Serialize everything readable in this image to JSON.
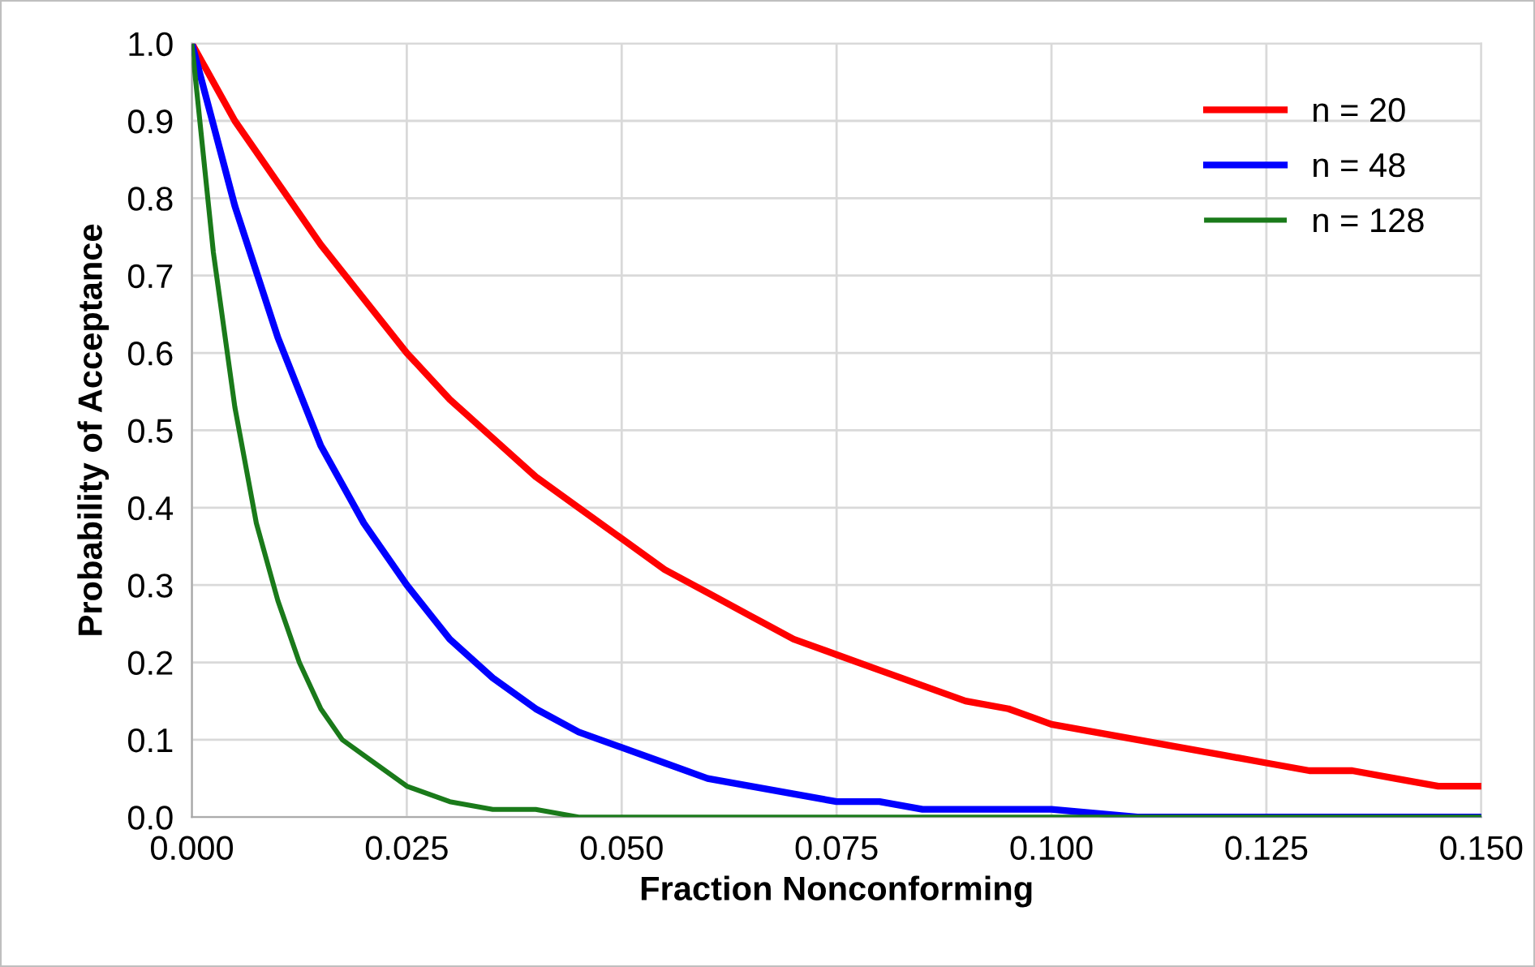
{
  "chart_data": {
    "type": "line",
    "xlabel": "Fraction Nonconforming",
    "ylabel": "Probability of Acceptance",
    "xlim": [
      0,
      0.15
    ],
    "xticks": [
      {
        "value": 0,
        "label": "0.000"
      },
      {
        "value": 0.025,
        "label": "0.025"
      },
      {
        "value": 0.05,
        "label": "0.050"
      },
      {
        "value": 0.075,
        "label": "0.075"
      },
      {
        "value": 0.1,
        "label": "0.100"
      },
      {
        "value": 0.125,
        "label": "0.125"
      },
      {
        "value": 0.15,
        "label": "0.150"
      }
    ],
    "ylim": [
      0,
      1
    ],
    "yticks": [
      {
        "value": 0,
        "label": "0.0"
      },
      0.1,
      0.2,
      0.3,
      0.4,
      0.5,
      0.6,
      0.7,
      0.8,
      0.9,
      {
        "value": 1,
        "label": "1.0"
      }
    ],
    "grid": true,
    "legend": "top right",
    "marker": "none",
    "line_style": "solid",
    "series": [
      {
        "name": "n = 20",
        "color": "#ff0000",
        "x": [
          0,
          0.005,
          0.01,
          0.015,
          0.02,
          0.025,
          0.03,
          0.035,
          0.04,
          0.045,
          0.05,
          0.055,
          0.06,
          0.065,
          0.07,
          0.075,
          0.08,
          0.085,
          0.09,
          0.095,
          0.1,
          0.105,
          0.11,
          0.115,
          0.12,
          0.125,
          0.13,
          0.135,
          0.14,
          0.145,
          0.15
        ],
        "values": [
          1.0,
          0.9,
          0.82,
          0.74,
          0.67,
          0.6,
          0.54,
          0.49,
          0.44,
          0.4,
          0.36,
          0.32,
          0.29,
          0.26,
          0.23,
          0.21,
          0.19,
          0.17,
          0.15,
          0.14,
          0.12,
          0.11,
          0.1,
          0.09,
          0.08,
          0.07,
          0.06,
          0.06,
          0.05,
          0.04,
          0.04
        ]
      },
      {
        "name": "n = 48",
        "color": "#0000ff",
        "x": [
          0,
          0.005,
          0.01,
          0.015,
          0.02,
          0.025,
          0.03,
          0.035,
          0.04,
          0.045,
          0.05,
          0.055,
          0.06,
          0.065,
          0.07,
          0.075,
          0.08,
          0.085,
          0.09,
          0.095,
          0.1,
          0.11,
          0.12,
          0.13,
          0.14,
          0.15
        ],
        "values": [
          1.0,
          0.79,
          0.62,
          0.48,
          0.38,
          0.3,
          0.23,
          0.18,
          0.14,
          0.11,
          0.09,
          0.07,
          0.05,
          0.04,
          0.03,
          0.02,
          0.02,
          0.01,
          0.01,
          0.01,
          0.01,
          0.0,
          0.0,
          0.0,
          0.0,
          0.0
        ]
      },
      {
        "name": "n = 128",
        "color": "#1a7a1a",
        "x": [
          0,
          0.0025,
          0.005,
          0.0075,
          0.01,
          0.0125,
          0.015,
          0.0175,
          0.02,
          0.025,
          0.03,
          0.035,
          0.04,
          0.045,
          0.05,
          0.075,
          0.1,
          0.125,
          0.15
        ],
        "values": [
          1.0,
          0.73,
          0.53,
          0.38,
          0.28,
          0.2,
          0.14,
          0.1,
          0.08,
          0.04,
          0.02,
          0.01,
          0.01,
          0.0,
          0.0,
          0.0,
          0.0,
          0.0,
          0.0
        ]
      }
    ]
  }
}
